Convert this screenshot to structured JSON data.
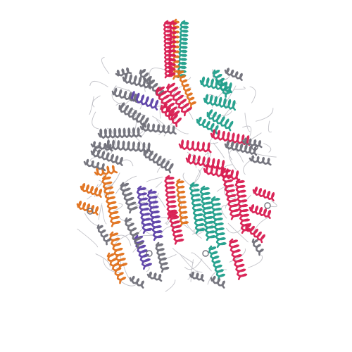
{
  "image": {
    "subject": "protein-ribbon-structure",
    "background_color": "#ffffff",
    "chain_colors": {
      "crimson": "#d81b50",
      "teal": "#1f9e8a",
      "orange": "#e0701a",
      "purple": "#5b3fa6",
      "gray": "#6f6f78",
      "light_gray": "#b8b8c0"
    }
  }
}
